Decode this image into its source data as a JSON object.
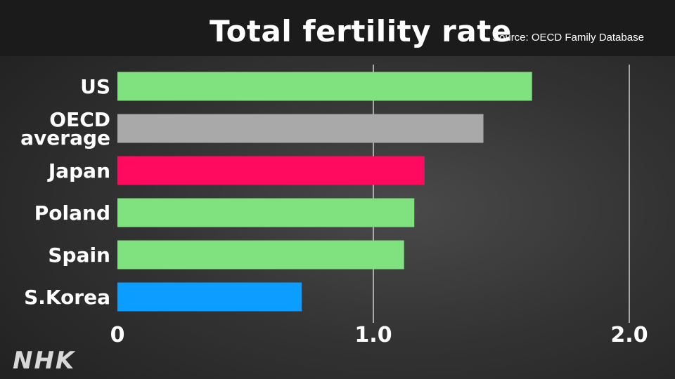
{
  "header": {
    "title": "Total fertility rate",
    "source": "Source: OECD Family Database"
  },
  "logo": "NHK",
  "chart_data": {
    "type": "bar",
    "orientation": "horizontal",
    "title": "Total fertility rate",
    "categories": [
      "US",
      "OECD average",
      "Japan",
      "Poland",
      "Spain",
      "S.Korea"
    ],
    "category_lines": [
      [
        "US"
      ],
      [
        "OECD",
        "average"
      ],
      [
        "Japan"
      ],
      [
        "Poland"
      ],
      [
        "Spain"
      ],
      [
        "S.Korea"
      ]
    ],
    "values": [
      1.62,
      1.43,
      1.2,
      1.16,
      1.12,
      0.72
    ],
    "colors": [
      "#7fe27f",
      "#a9a9a9",
      "#ff0a5e",
      "#7fe27f",
      "#7fe27f",
      "#0b9dff"
    ],
    "xlim": [
      0,
      2.0
    ],
    "xticks": [
      0,
      1.0,
      2.0
    ],
    "xtick_labels": [
      "0",
      "1.0",
      "2.0"
    ],
    "grid": true
  }
}
